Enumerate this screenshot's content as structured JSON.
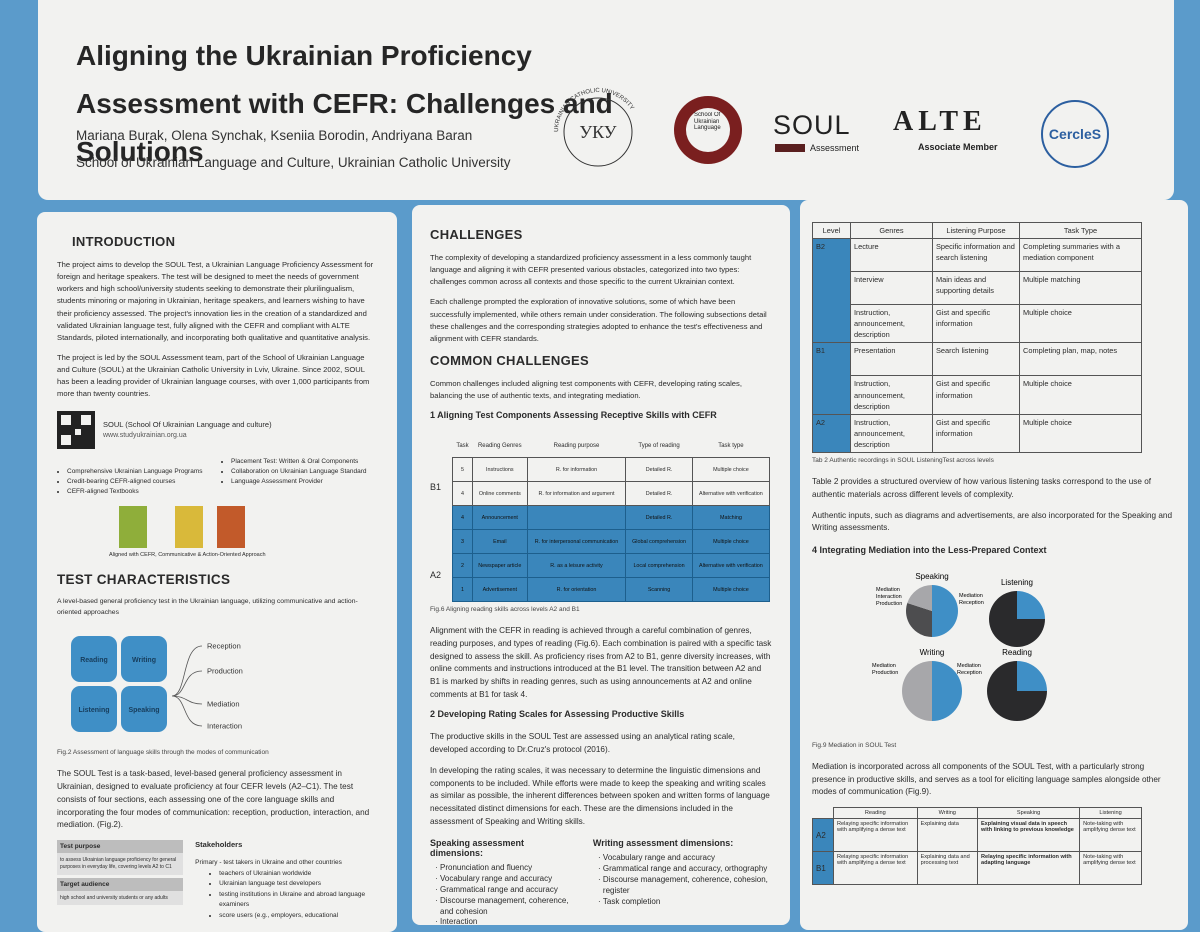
{
  "header": {
    "title": "Aligning the Ukrainian Proficiency Assessment with CEFR: Challenges and Solutions",
    "authors": "Mariana Burak, Olena Synchak, Kseniia Borodin, Andriyana Baran",
    "affiliation": "School of Ukrainian Language and Culture, Ukrainian Catholic University",
    "logos": {
      "ucu": "UKRAINIAN CATHOLIC UNIVERSITY",
      "ucu_mark": "УКУ",
      "school": "School Of Ukrainian Language",
      "soul": "SOUL",
      "soul_sub": "Assessment",
      "alte": "ALTE",
      "alte_sub": "Associate Member",
      "cercles": "CercleS"
    }
  },
  "introduction": {
    "heading": "INTRODUCTION",
    "paragraphs": [
      "The project aims to develop the SOUL Test, a Ukrainian Language Proficiency Assessment for foreign and heritage speakers. The test will be designed to meet the needs of government workers and high school/university students seeking to demonstrate their plurilingualism, students minoring or majoring in Ukrainian, heritage speakers, and learners wishing to have their proficiency assessed. The project's innovation lies in the creation of a standardized and validated Ukrainian language test, fully aligned with the CEFR and compliant with ALTE Standards, piloted internationally, and incorporating both qualitative and quantitative analysis.",
      "The project is led by the SOUL Assessment team, part of the School of Ukrainian Language and Culture (SOUL) at the Ukrainian Catholic University in Lviv, Ukraine. Since 2002, SOUL has been a leading provider of Ukrainian language courses, with over 1,000 participants from more than twenty countries."
    ],
    "soul_name": "SOUL (School Of Ukrainian Language and culture)",
    "website": "www.studyukrainian.org.ua",
    "services_left": [
      "Comprehensive Ukrainian Language Programs",
      "Credit-bearing CEFR-aligned courses",
      "CEFR-aligned Textbooks"
    ],
    "services_right": [
      "Placement Test: Written & Oral Components",
      "Collaboration on Ukrainian Language Standard",
      "Language Assessment Provider"
    ],
    "textbook_caption": "Aligned with CEFR, Communicative & Action-Oriented Approach"
  },
  "test_characteristics": {
    "heading": "TEST CHARACTERISTICS",
    "intro": "A level-based general proficiency test in the Ukrainian language, utilizing communicative and action-oriented approaches",
    "skills": [
      "Reading",
      "Writing",
      "Listening",
      "Speaking"
    ],
    "modes": [
      "Reception",
      "Production",
      "Mediation",
      "Interaction"
    ],
    "figure_caption": "Fig.2  Assessment of language skills through the modes of communication",
    "paragraph": "The SOUL Test is a task-based, level-based general proficiency assessment in Ukrainian, designed to evaluate proficiency at four CEFR levels (A2–C1). The test consists of four sections, each assessing one of the core language skills and incorporating the four modes of communication: reception, production, interaction, and mediation. (Fig.2).",
    "purpose_heading": "Test purpose",
    "purpose_text": "to assess Ukrainian language proficiency for general purposes in everyday life, covering levels A2 to C1",
    "audience_heading": "Target audience",
    "audience_text": "high school and university students or any adults",
    "stakeholders_heading": "Stakeholders",
    "stakeholders_primary": "Primary - test takers in Ukraine and other countries",
    "stakeholders_list": [
      "teachers of Ukrainian worldwide",
      "Ukrainian language test developers",
      "testing institutions in Ukraine and abroad language examiners",
      "score users (e.g., employers, educational"
    ]
  },
  "challenges": {
    "heading": "CHALLENGES",
    "paragraphs": [
      "The complexity of developing a standardized proficiency assessment in a less commonly taught language and aligning it with CEFR presented various obstacles, categorized into two types: challenges common across all contexts and those specific to the current Ukrainian context.",
      "Each challenge prompted the exploration of innovative solutions, some of which have been successfully implemented, while others remain under consideration. The following subsections detail these challenges and the corresponding strategies adopted to enhance the test's effectiveness and alignment with CEFR standards."
    ],
    "common_heading": "COMMON CHALLENGES",
    "common_text": "Common challenges included aligning test components with CEFR, developing rating scales, balancing the use of authentic texts, and integrating mediation.",
    "section1_heading": "1 Aligning Test Components Assessing Receptive Skills with CEFR",
    "reading_table": {
      "headers": [
        "Task",
        "Reading Genres",
        "Reading purpose",
        "Type of reading",
        "Task type"
      ],
      "rows": [
        [
          "5",
          "Instructions",
          "R. for information",
          "Detailed R.",
          "Multiple choice"
        ],
        [
          "4",
          "Online comments",
          "R. for information and argument",
          "Detailed R.",
          "Alternative with verification"
        ],
        [
          "4",
          "Announcement",
          null,
          "Detailed R.",
          "Matching"
        ],
        [
          "3",
          "Email",
          "R. for interpersonal communication",
          "Global comprehension",
          "Multiple choice"
        ],
        [
          "2",
          "Newspaper article",
          "R. as a leisure activity",
          "Local comprehension",
          "Alternative with verification"
        ],
        [
          "1",
          "Advertisement",
          "R. for orientation",
          "Scanning",
          "Multiple choice"
        ]
      ],
      "levels": [
        "B1",
        "A2"
      ]
    },
    "fig6_caption": "Fig.6  Aligning reading skills across levels A2 and B1",
    "section1_text": "Alignment with the CEFR in reading is achieved through a careful combination of genres, reading purposes, and types of reading (Fig.6). Each combination is paired with a specific task designed to assess the skill. As proficiency rises from A2 to B1, genre diversity increases, with online comments and instructions introduced at the B1 level. The transition between A2 and B1 is marked by shifts in reading genres, such as using announcements at A2 and online comments at B1 for task 4.",
    "section2_heading": "2 Developing Rating Scales for Assessing Productive Skills",
    "section2_paragraphs": [
      "The productive skills in the SOUL Test are assessed using an analytical rating scale, developed according to Dr.Cruz's protocol (2016).",
      "In developing the rating scales, it was necessary to determine the linguistic dimensions and components to be included. While efforts were made to keep the speaking and writing scales as similar as possible, the inherent differences between spoken and written forms of language necessitated distinct dimensions for each. These are the dimensions included in the assessment of Speaking and Writing skills."
    ],
    "speaking_heading": "Speaking assessment dimensions:",
    "speaking_dims": [
      "Pronunciation and fluency",
      "Vocabulary range and accuracy",
      "Grammatical range and accuracy",
      "Discourse management, coherence, and cohesion",
      "Interaction"
    ],
    "writing_heading": "Writing assessment dimensions:",
    "writing_dims": [
      "Vocabulary range and accuracy",
      "Grammatical range and accuracy, orthography",
      "Discourse management, coherence, cohesion, register",
      "Task completion"
    ]
  },
  "listening": {
    "headers": [
      "Level",
      "Genres",
      "Listening Purpose",
      "Task Type"
    ],
    "groups": [
      {
        "level": "B2",
        "rows": [
          [
            "Lecture",
            "Specific information and search listening",
            "Completing summaries with a mediation component"
          ],
          [
            "Interview",
            "Main ideas and supporting details",
            "Multiple matching"
          ],
          [
            "Instruction, announcement, description",
            "Gist and specific information",
            "Multiple choice"
          ]
        ]
      },
      {
        "level": "B1",
        "rows": [
          [
            "Presentation",
            "Search listening",
            "Completing plan, map, notes"
          ],
          [
            "Instruction, announcement, description",
            "Gist and specific information",
            "Multiple choice"
          ]
        ]
      },
      {
        "level": "A2",
        "rows": [
          [
            "Instruction, announcement, description",
            "Gist and specific information",
            "Multiple choice"
          ]
        ]
      }
    ],
    "caption": "Tab 2 Authentic recordings in SOUL ListeningTest across levels",
    "paragraphs": [
      "Table 2 provides a structured overview of how various listening tasks correspond to the use of authentic materials across different levels of complexity.",
      "Authentic inputs, such as diagrams and advertisements, are also incorporated for the Speaking and Writing assessments."
    ]
  },
  "mediation": {
    "heading": "4 Integrating Mediation into the Less-Prepared Context",
    "pies": [
      {
        "title": "Speaking",
        "slices": [
          {
            "name": "Mediation",
            "value": 50,
            "color": "#3f8fc6"
          },
          {
            "name": "Interaction",
            "value": 30,
            "color": "#4d4d4f"
          },
          {
            "name": "Production",
            "value": 20,
            "color": "#a7a7aa"
          }
        ]
      },
      {
        "title": "Listening",
        "slices": [
          {
            "name": "Mediation",
            "value": 25,
            "color": "#3f8fc6"
          },
          {
            "name": "Reception",
            "value": 75,
            "color": "#2a2a2c"
          }
        ]
      },
      {
        "title": "Writing",
        "slices": [
          {
            "name": "Mediation",
            "value": 50,
            "color": "#3f8fc6"
          },
          {
            "name": "Production",
            "value": 50,
            "color": "#a7a7aa"
          }
        ]
      },
      {
        "title": "Reading",
        "slices": [
          {
            "name": "Mediation",
            "value": 25,
            "color": "#3f8fc6"
          },
          {
            "name": "Reception",
            "value": 75,
            "color": "#2a2a2c"
          }
        ]
      }
    ],
    "caption": "Fig.9 Mediation in SOUL Test",
    "paragraph": "Mediation is incorporated across all components of the SOUL Test, with a particularly strong presence in productive skills, and serves as a tool for eliciting language samples alongside other modes of communication (Fig.9).",
    "table": {
      "headers": [
        "Reading",
        "Writing",
        "Speaking",
        "Listening"
      ],
      "rows": [
        {
          "level": "A2",
          "cells": [
            "Relaying specific information with amplifying a dense text",
            "Explaining data",
            "Explaining visual data in speech with linking to previous knowledge",
            "Note-taking with amplifying dense text"
          ]
        },
        {
          "level": "B1",
          "cells": [
            "Relaying specific information with amplifying a dense text",
            "Explaining data and processing text",
            "Relaying specific information with adapting language",
            "Note-taking with amplifying dense text"
          ]
        }
      ]
    }
  }
}
